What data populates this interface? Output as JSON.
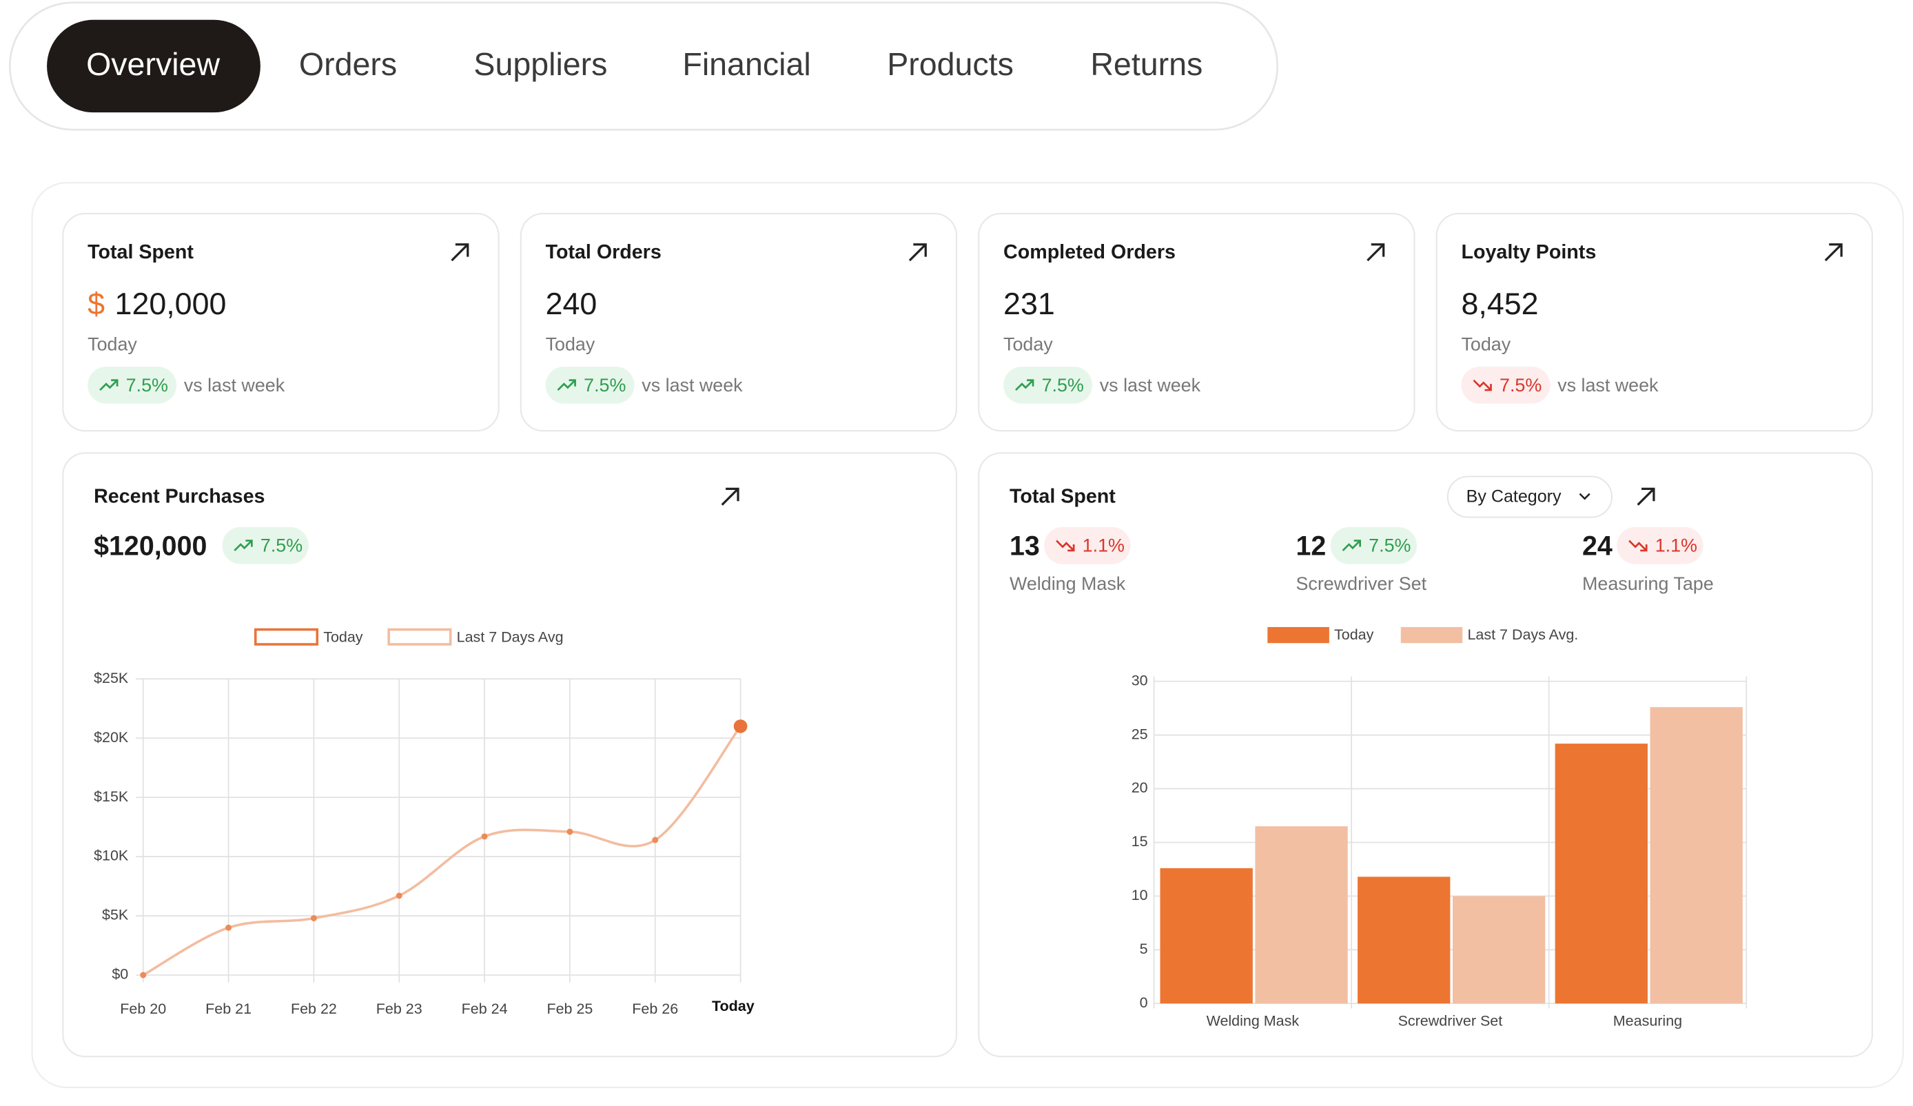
{
  "tabs": [
    "Overview",
    "Orders",
    "Suppliers",
    "Financial",
    "Products",
    "Returns"
  ],
  "active_tab_index": 0,
  "stats": [
    {
      "title": "Total Spent",
      "currency": "$",
      "value": "120,000",
      "period": "Today",
      "change": "7.5%",
      "trend": "up",
      "comparison": "vs last week"
    },
    {
      "title": "Total Orders",
      "value": "240",
      "period": "Today",
      "change": "7.5%",
      "trend": "up",
      "comparison": "vs last week"
    },
    {
      "title": "Completed Orders",
      "value": "231",
      "period": "Today",
      "change": "7.5%",
      "trend": "up",
      "comparison": "vs last week"
    },
    {
      "title": "Loyalty Points",
      "value": "8,452",
      "period": "Today",
      "change": "7.5%",
      "trend": "down",
      "comparison": "vs last week"
    }
  ],
  "recent_purchases": {
    "title": "Recent Purchases",
    "value": "$120,000",
    "change": "7.5%",
    "trend": "up"
  },
  "total_spent": {
    "title": "Total Spent",
    "filter": "By Category",
    "items": [
      {
        "count": "13",
        "change": "1.1%",
        "trend": "down",
        "label": "Welding Mask"
      },
      {
        "count": "12",
        "change": "7.5%",
        "trend": "up",
        "label": "Screwdriver Set"
      },
      {
        "count": "24",
        "change": "1.1%",
        "trend": "down",
        "label": "Measuring Tape"
      }
    ]
  },
  "chart_data": [
    {
      "type": "line",
      "categories": [
        "Feb 20",
        "Feb 21",
        "Feb 22",
        "Feb 23",
        "Feb 24",
        "Feb 25",
        "Feb 26",
        "Today"
      ],
      "series": [
        {
          "name": "Today",
          "color": "#e8743b",
          "values": [
            null,
            null,
            null,
            null,
            null,
            null,
            null,
            21000
          ]
        },
        {
          "name": "Last 7 Days Avg",
          "color": "#f3bc9f",
          "values": [
            0,
            4000,
            4800,
            6700,
            11700,
            12100,
            11400,
            21000
          ]
        }
      ],
      "ylim": [
        0,
        25000
      ],
      "yticks": [
        {
          "value": 0,
          "label": "$0"
        },
        {
          "value": 5000,
          "label": "$5K"
        },
        {
          "value": 10000,
          "label": "$10K"
        },
        {
          "value": 15000,
          "label": "$15K"
        },
        {
          "value": 20000,
          "label": "$20K"
        },
        {
          "value": 25000,
          "label": "$25K"
        }
      ],
      "grid": true,
      "highlight_last_category": true
    },
    {
      "type": "bar",
      "categories": [
        "Welding Mask",
        "Screwdriver Set",
        "Measuring"
      ],
      "series": [
        {
          "name": "Today",
          "color": "#ec7532",
          "values": [
            12.6,
            11.8,
            24.2
          ]
        },
        {
          "name": "Last 7 Days Avg.",
          "color": "#f2bfa3",
          "values": [
            16.5,
            10,
            27.6
          ]
        }
      ],
      "ylim": [
        0,
        30
      ],
      "yticks": [
        0,
        5,
        10,
        15,
        20,
        25,
        30
      ],
      "grid": true
    }
  ]
}
